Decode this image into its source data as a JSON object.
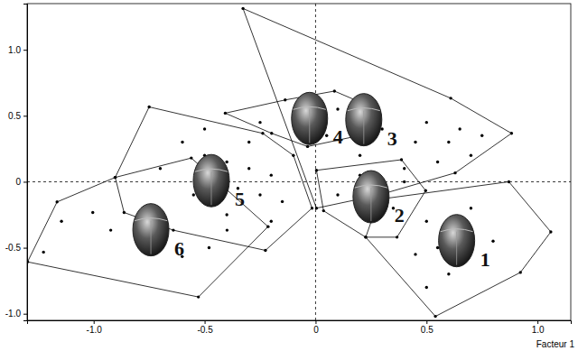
{
  "chart_data": {
    "type": "scatter",
    "x_label": "Facteur 1",
    "marker": "circle",
    "xlim": [
      -1.3,
      1.15
    ],
    "ylim": [
      -1.05,
      1.35
    ],
    "xticks": [
      {
        "value": -1.0,
        "label": "-1.0"
      },
      {
        "value": -0.5,
        "label": "-0.5"
      },
      0,
      {
        "value": 0.5,
        "label": "0.5"
      },
      {
        "value": 1.0,
        "label": "1.0"
      }
    ],
    "yticks": [
      {
        "value": -1.0,
        "label": "-1.0"
      },
      {
        "value": -0.5,
        "label": "-0.5"
      },
      0,
      {
        "value": 0.5,
        "label": "0.5"
      },
      {
        "value": 1.0,
        "label": "1.0"
      }
    ],
    "reference_lines": {
      "x": [
        0
      ],
      "y": [
        0
      ]
    },
    "series": [
      {
        "name": "1",
        "color": "#000000",
        "x": [
          0.286,
          0.871,
          1.06,
          0.923,
          0.54,
          0.226,
          0.5,
          0.55,
          0.6,
          0.65,
          0.7,
          0.8,
          0.5,
          0.45
        ],
        "values": [
          -0.133,
          0.0,
          -0.38,
          -0.687,
          -1.02,
          -0.42,
          -0.3,
          -0.5,
          -0.7,
          -0.4,
          -0.2,
          -0.45,
          -0.8,
          -0.55
        ]
      },
      {
        "name": "2",
        "color": "#000000",
        "x": [
          0.004,
          0.387,
          0.496,
          0.367,
          0.226,
          0.036,
          0.1,
          0.2,
          0.3,
          0.35,
          0.25,
          0.4
        ],
        "values": [
          0.087,
          0.167,
          -0.067,
          -0.42,
          -0.42,
          -0.22,
          -0.1,
          0.05,
          -0.05,
          -0.2,
          -0.3,
          0.0
        ]
      },
      {
        "name": "3",
        "color": "#000000",
        "x": [
          -0.327,
          0.609,
          0.883,
          0.629,
          0.286,
          0.004,
          0.3,
          0.45,
          0.5,
          0.6,
          0.7,
          0.55,
          0.4,
          0.65,
          0.2,
          0.75
        ],
        "values": [
          1.313,
          0.633,
          0.367,
          0.067,
          -0.1,
          -0.2,
          0.4,
          0.3,
          0.45,
          0.3,
          0.2,
          0.15,
          0.1,
          0.4,
          0.2,
          0.35
        ]
      },
      {
        "name": "4",
        "color": "#000000",
        "x": [
          -0.407,
          -0.137,
          0.085,
          0.206,
          0.246,
          -0.036,
          -0.198,
          -0.1,
          0.0,
          0.1,
          0.15,
          -0.25,
          0.05
        ],
        "values": [
          0.52,
          0.62,
          0.687,
          0.6,
          0.367,
          0.267,
          0.367,
          0.5,
          0.45,
          0.55,
          0.45,
          0.45,
          0.35
        ]
      },
      {
        "name": "5",
        "color": "#000000",
        "x": [
          -0.75,
          -0.238,
          -0.016,
          -0.226,
          -0.641,
          -0.863,
          -0.903,
          -0.6,
          -0.5,
          -0.4,
          -0.3,
          -0.2,
          -0.45,
          -0.35,
          -0.25,
          -0.15,
          -0.55,
          -0.7,
          -0.1,
          -0.3,
          -0.5,
          -0.2,
          -0.4
        ],
        "values": [
          0.567,
          0.367,
          -0.2,
          -0.52,
          -0.367,
          -0.233,
          0.033,
          0.3,
          0.2,
          0.15,
          0.1,
          0.05,
          0.0,
          -0.05,
          -0.1,
          -0.15,
          -0.1,
          0.1,
          0.2,
          0.3,
          0.4,
          -0.3,
          -0.25
        ]
      },
      {
        "name": "6",
        "color": "#000000",
        "x": [
          -1.298,
          -1.165,
          -0.903,
          -0.56,
          -0.214,
          -0.528,
          -1.004,
          -1.145,
          -1.226,
          -0.923,
          -0.762,
          -0.601,
          -0.48,
          -0.399,
          -0.681
        ],
        "values": [
          -0.607,
          -0.153,
          0.033,
          0.18,
          -0.34,
          -0.873,
          -0.233,
          -0.3,
          -0.533,
          -0.367,
          -0.433,
          -0.567,
          -0.5,
          -0.367,
          -0.3
        ]
      }
    ]
  }
}
